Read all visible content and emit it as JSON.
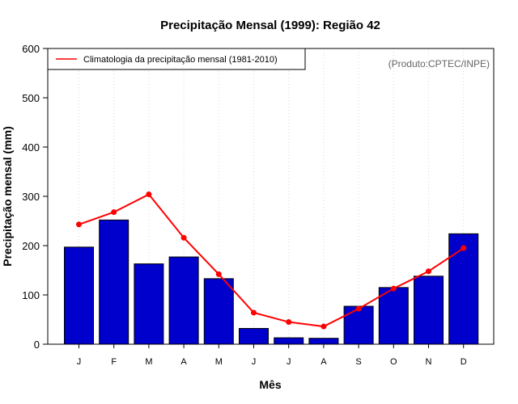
{
  "chart_data": {
    "type": "bar",
    "title": "Precipitação Mensal (1999): Região 42",
    "xlabel": "Mês",
    "ylabel": "Precipitação mensal (mm)",
    "ylim": [
      0,
      600
    ],
    "yticks": [
      0,
      100,
      200,
      300,
      400,
      500,
      600
    ],
    "categories": [
      "J",
      "F",
      "M",
      "A",
      "M",
      "J",
      "J",
      "A",
      "S",
      "O",
      "N",
      "D"
    ],
    "series": [
      {
        "name": "Precipitação mensal (1999)",
        "type": "bar",
        "color": "#0000cc",
        "values": [
          197,
          252,
          163,
          177,
          133,
          32,
          13,
          12,
          77,
          115,
          138,
          224
        ]
      },
      {
        "name": "Climatologia da precipitação mensal (1981-2010)",
        "type": "line",
        "color": "#ff0000",
        "values": [
          243,
          268,
          304,
          216,
          142,
          64,
          45,
          36,
          72,
          113,
          148,
          195
        ]
      }
    ],
    "legend": {
      "placement": "top-left",
      "entries": [
        "Climatologia da precipitação mensal (1981-2010)"
      ]
    },
    "annotation": "(Produto:CPTEC/INPE)",
    "grid": "vertical dotted"
  }
}
